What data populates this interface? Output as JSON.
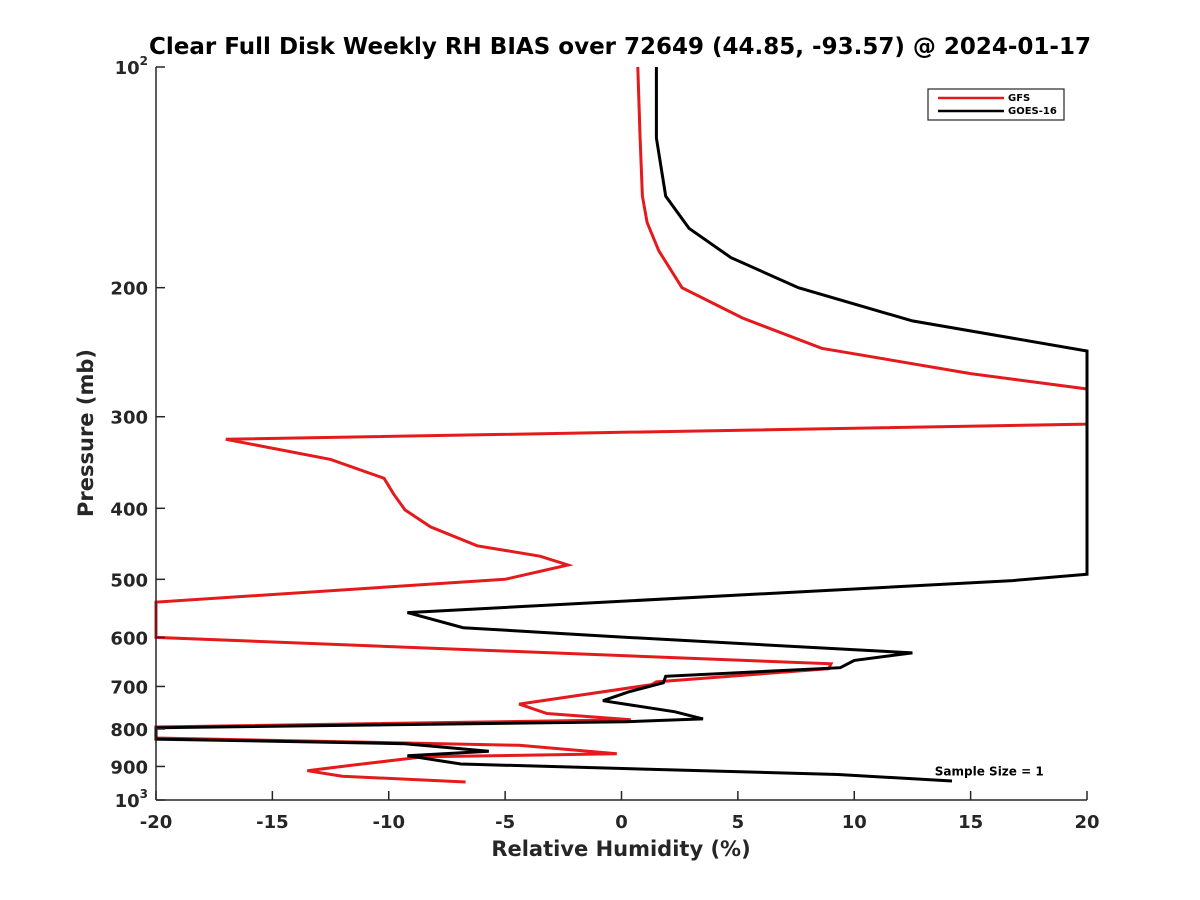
{
  "chart_data": {
    "type": "line",
    "title": "Clear Full Disk Weekly RH BIAS over 72649 (44.85, -93.57) @ 2024-01-17",
    "xlabel": "Relative Humidity (%)",
    "ylabel": "Pressure (mb)",
    "xlim": [
      -20,
      20
    ],
    "ylim": [
      100,
      1000
    ],
    "y_scale": "log",
    "y_reversed": true,
    "grid": false,
    "legend_position": "top-right",
    "x_ticks": [
      {
        "value": -20,
        "label": "-20"
      },
      {
        "value": -15,
        "label": "-15"
      },
      {
        "value": -10,
        "label": "-10"
      },
      {
        "value": -5,
        "label": "-5"
      },
      {
        "value": 0,
        "label": "0"
      },
      {
        "value": 5,
        "label": "5"
      },
      {
        "value": 10,
        "label": "10"
      },
      {
        "value": 15,
        "label": "15"
      },
      {
        "value": 20,
        "label": "20"
      }
    ],
    "y_ticks": [
      {
        "value": 100,
        "base": "10",
        "exp": "2"
      },
      {
        "value": 200,
        "base": "200",
        "exp": ""
      },
      {
        "value": 300,
        "base": "300",
        "exp": ""
      },
      {
        "value": 400,
        "base": "400",
        "exp": ""
      },
      {
        "value": 500,
        "base": "500",
        "exp": ""
      },
      {
        "value": 600,
        "base": "600",
        "exp": ""
      },
      {
        "value": 700,
        "base": "700",
        "exp": ""
      },
      {
        "value": 800,
        "base": "800",
        "exp": ""
      },
      {
        "value": 900,
        "base": "900",
        "exp": ""
      },
      {
        "value": 1000,
        "base": "10",
        "exp": "3"
      }
    ],
    "series": [
      {
        "name": "GFS",
        "color": "#e41a1c",
        "points": [
          [
            0.7,
            100
          ],
          [
            0.8,
            125
          ],
          [
            0.9,
            150
          ],
          [
            1.1,
            163
          ],
          [
            1.6,
            178
          ],
          [
            2.6,
            200
          ],
          [
            5.2,
            220
          ],
          [
            8.6,
            242
          ],
          [
            15.0,
            262
          ],
          [
            20.0,
            275
          ],
          [
            20.0,
            307
          ],
          [
            -17.0,
            322
          ],
          [
            -12.5,
            343
          ],
          [
            -10.2,
            364
          ],
          [
            -9.8,
            382
          ],
          [
            -9.3,
            402
          ],
          [
            -8.2,
            424
          ],
          [
            -6.2,
            450
          ],
          [
            -3.5,
            465
          ],
          [
            -2.3,
            478
          ],
          [
            -5.0,
            500
          ],
          [
            -20.0,
            537
          ],
          [
            -20.0,
            600
          ],
          [
            9.0,
            652
          ],
          [
            8.9,
            662
          ],
          [
            1.5,
            690
          ],
          [
            1.3,
            696
          ],
          [
            -4.4,
            740
          ],
          [
            -3.2,
            762
          ],
          [
            0.4,
            777
          ],
          [
            -20.0,
            795
          ],
          [
            -20.0,
            823
          ],
          [
            -4.4,
            842
          ],
          [
            -0.2,
            865
          ],
          [
            -8.5,
            873
          ],
          [
            -11.5,
            896
          ],
          [
            -13.5,
            912
          ],
          [
            -12.0,
            928
          ],
          [
            -6.7,
            945
          ]
        ]
      },
      {
        "name": "GOES-16",
        "color": "#000000",
        "points": [
          [
            1.5,
            100
          ],
          [
            1.5,
            125
          ],
          [
            1.9,
            150
          ],
          [
            2.9,
            166
          ],
          [
            4.7,
            182
          ],
          [
            7.6,
            200
          ],
          [
            12.5,
            222
          ],
          [
            20.0,
            244
          ],
          [
            20.0,
            492
          ],
          [
            16.8,
            502
          ],
          [
            -9.2,
            555
          ],
          [
            -6.8,
            582
          ],
          [
            -0.6,
            598
          ],
          [
            12.5,
            630
          ],
          [
            10.0,
            645
          ],
          [
            9.4,
            660
          ],
          [
            1.9,
            678
          ],
          [
            1.8,
            692
          ],
          [
            0.3,
            712
          ],
          [
            -0.8,
            732
          ],
          [
            2.3,
            758
          ],
          [
            3.5,
            775
          ],
          [
            0.2,
            782
          ],
          [
            -20.0,
            797
          ],
          [
            -20.0,
            826
          ],
          [
            -9.3,
            838
          ],
          [
            -5.7,
            858
          ],
          [
            -9.2,
            870
          ],
          [
            -6.9,
            893
          ],
          [
            9.3,
            923
          ],
          [
            14.2,
            942
          ]
        ]
      }
    ],
    "annotations": [
      {
        "text": "Sample Size = 1",
        "x": 15.8,
        "y": 915
      }
    ]
  }
}
